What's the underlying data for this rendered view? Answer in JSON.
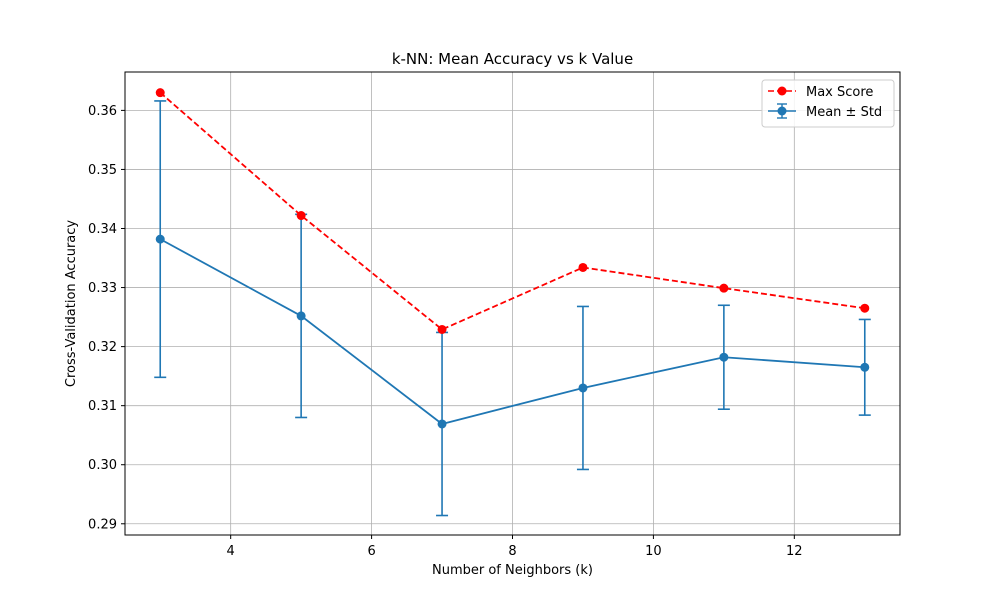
{
  "chart_data": {
    "type": "line",
    "title": "k-NN: Mean Accuracy vs k Value",
    "xlabel": "Number of Neighbors (k)",
    "ylabel": "Cross-Validation Accuracy",
    "x": [
      3,
      5,
      7,
      9,
      11,
      13
    ],
    "xlim": [
      2.5,
      13.5
    ],
    "ylim": [
      0.2881,
      0.3665
    ],
    "xticks": [
      4,
      6,
      8,
      10,
      12
    ],
    "yticks": [
      0.29,
      0.3,
      0.31,
      0.32,
      0.33,
      0.34,
      0.35,
      0.36
    ],
    "xtick_labels": [
      "4",
      "6",
      "8",
      "10",
      "12"
    ],
    "ytick_labels": [
      "0.29",
      "0.30",
      "0.31",
      "0.32",
      "0.33",
      "0.34",
      "0.35",
      "0.36"
    ],
    "grid": true,
    "legend_position": "upper right",
    "series": [
      {
        "name": "Max Score",
        "style": "dashed-with-markers",
        "color": "#ff0000",
        "values": [
          0.363,
          0.3422,
          0.3229,
          0.3334,
          0.3299,
          0.3265
        ]
      },
      {
        "name": "Mean ± Std",
        "style": "solid-with-errorbars",
        "color": "#1f77b4",
        "values": [
          0.3382,
          0.3252,
          0.3069,
          0.313,
          0.3182,
          0.3165
        ],
        "std": [
          0.0234,
          0.0172,
          0.0155,
          0.0138,
          0.0088,
          0.0081
        ]
      }
    ]
  }
}
